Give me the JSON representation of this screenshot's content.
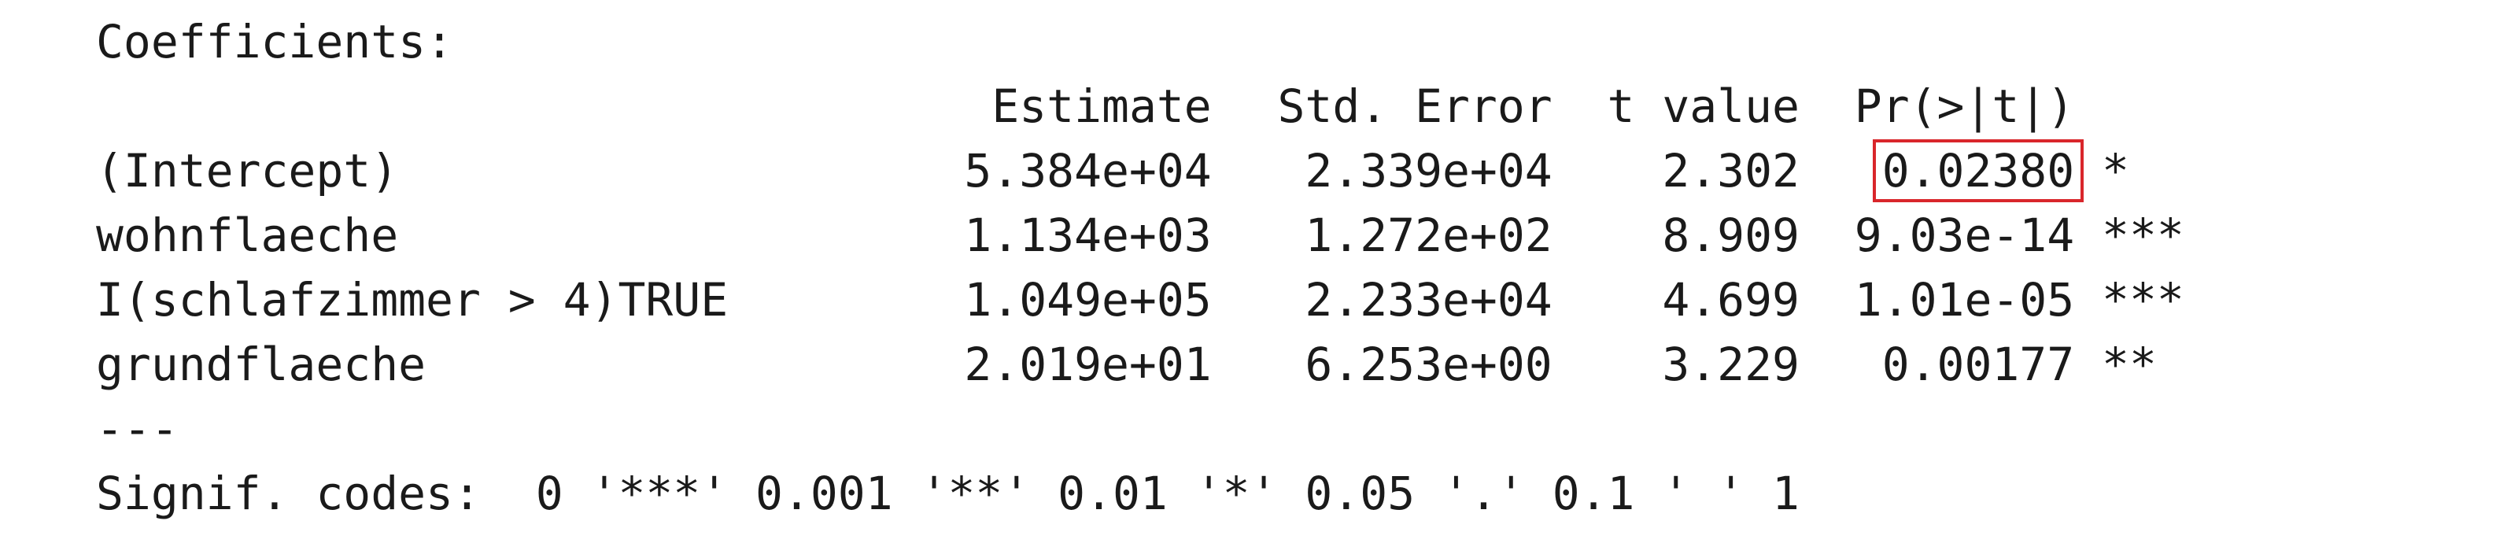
{
  "section_title": "Coefficients:",
  "columns": {
    "estimate": "Estimate",
    "std_error": "Std. Error",
    "t_value": "t value",
    "p_value": "Pr(>|t|)"
  },
  "rows": [
    {
      "name": "(Intercept)",
      "estimate": "5.384e+04",
      "std_error": "2.339e+04",
      "t_value": "2.302",
      "p_value": "0.02380",
      "signif": "*"
    },
    {
      "name": "wohnflaeche",
      "estimate": "1.134e+03",
      "std_error": "1.272e+02",
      "t_value": "8.909",
      "p_value": "9.03e-14",
      "signif": "***"
    },
    {
      "name": "I(schlafzimmer > 4)TRUE",
      "estimate": "1.049e+05",
      "std_error": "2.233e+04",
      "t_value": "4.699",
      "p_value": "1.01e-05",
      "signif": "***"
    },
    {
      "name": "grundflaeche",
      "estimate": "2.019e+01",
      "std_error": "6.253e+00",
      "t_value": "3.229",
      "p_value": "0.00177",
      "signif": "**"
    }
  ],
  "separator": "---",
  "signif_codes": "Signif. codes:  0 '***' 0.001 '**' 0.01 '*' 0.05 '.' 0.1 ' ' 1",
  "highlight_color": "#d9262b"
}
